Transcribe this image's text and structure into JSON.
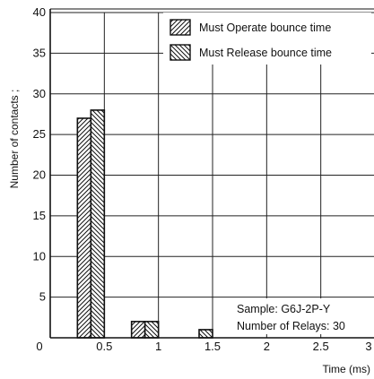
{
  "chart_data": {
    "type": "bar",
    "xlabel": "Time (ms)",
    "ylabel": "Number of contacts",
    "ylabel_visible": "Number of contacts ;",
    "xlim": [
      0,
      3
    ],
    "ylim": [
      0,
      40
    ],
    "xticks": [
      "0",
      "0.5",
      "1",
      "1.5",
      "2",
      "2.5",
      "3"
    ],
    "yticks": [
      "5",
      "10",
      "15",
      "20",
      "25",
      "30",
      "35",
      "40"
    ],
    "bin_width": 0.5,
    "series": [
      {
        "name": "Must Operate bounce time",
        "pattern": "diag-fwd",
        "points": [
          {
            "x": 0.5,
            "y": 27
          },
          {
            "x": 1.0,
            "y": 2
          },
          {
            "x": 1.5,
            "y": 0
          }
        ]
      },
      {
        "name": "Must Release bounce time",
        "pattern": "diag-back",
        "points": [
          {
            "x": 0.5,
            "y": 28
          },
          {
            "x": 1.0,
            "y": 2
          },
          {
            "x": 1.5,
            "y": 1
          }
        ]
      }
    ],
    "annotations": [
      "Sample: G6J-2P-Y",
      "Number of Relays: 30"
    ],
    "grid": true,
    "legend_position": "top-right"
  }
}
